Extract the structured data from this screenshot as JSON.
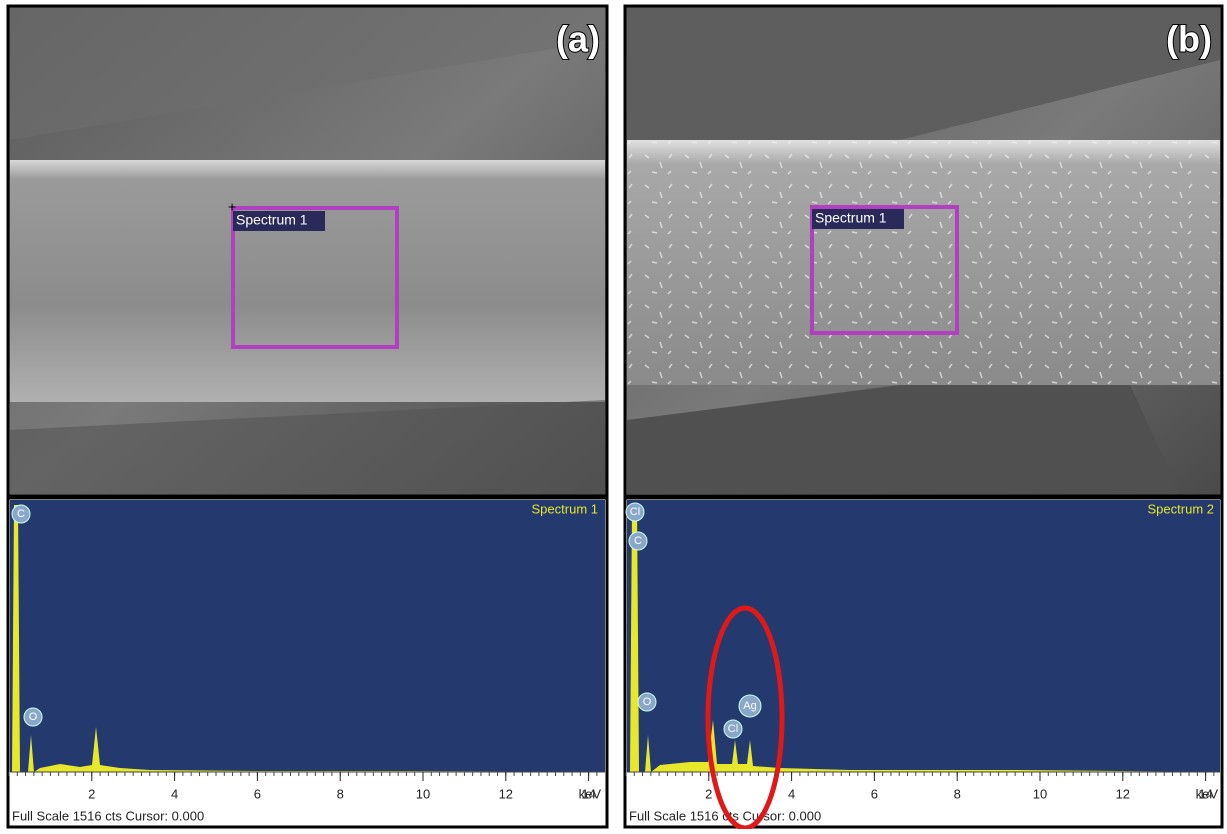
{
  "panels": [
    {
      "label": "(a)",
      "roi_label": "Spectrum 1",
      "spectrum": {
        "name": "Spectrum 1",
        "peaks": [
          "C",
          "O"
        ],
        "x_ticks": [
          2,
          4,
          6,
          8,
          10,
          12,
          14
        ],
        "unit": "keV",
        "footer": "Full Scale 1516 cts Cursor: 0.000"
      }
    },
    {
      "label": "(b)",
      "roi_label": "Spectrum 1",
      "spectrum": {
        "name": "Spectrum 2",
        "peaks": [
          "Cl",
          "C",
          "O",
          "Cl",
          "Ag"
        ],
        "x_ticks": [
          2,
          4,
          6,
          8,
          10,
          12,
          14
        ],
        "unit": "keV",
        "footer": "Full Scale 1516 cts Cursor: 0.000"
      }
    }
  ]
}
